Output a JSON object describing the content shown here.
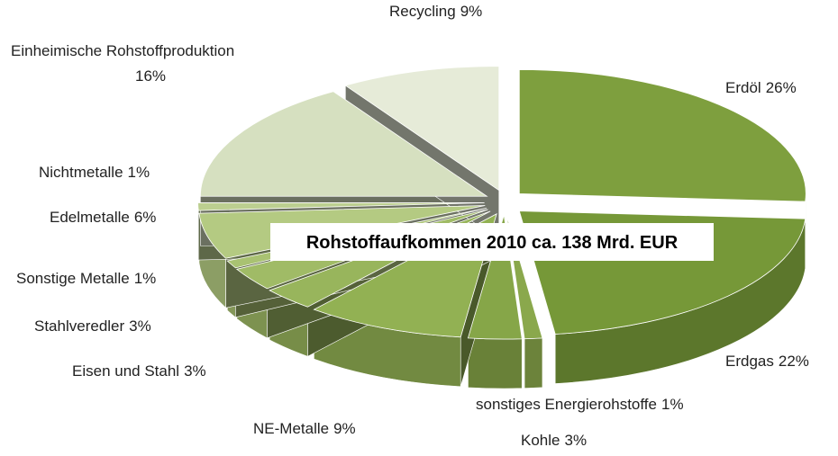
{
  "chart_data": {
    "type": "pie",
    "title": "Rohstoffaufkommen 2010 ca. 138 Mrd. EUR",
    "categories": [
      "Erdöl",
      "Erdgas",
      "sonstiges Energierohstoffe",
      "Kohle",
      "NE-Metalle",
      "Eisen und Stahl",
      "Stahlveredler",
      "Sonstige Metalle",
      "Edelmetalle",
      "Nichtmetalle",
      "Einheimische Rohstoffproduktion",
      "Recycling"
    ],
    "values": [
      26,
      22,
      1,
      3,
      9,
      3,
      3,
      1,
      6,
      1,
      16,
      9
    ],
    "value_labels": [
      "26%",
      "22%",
      "1%",
      "3%",
      "9%",
      "3%",
      "3%",
      "1%",
      "6%",
      "1%",
      "16%",
      "9%"
    ],
    "colors": [
      "#7e9f3e",
      "#769838",
      "#8aa84c",
      "#86a648",
      "#92b153",
      "#98b55c",
      "#a0bb66",
      "#a9c272",
      "#b4ca82",
      "#bccf90",
      "#d6e0c0",
      "#e6ebd8"
    ]
  }
}
